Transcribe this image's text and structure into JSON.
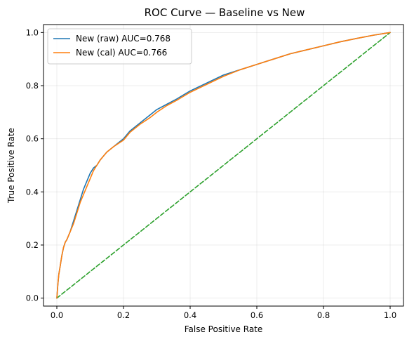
{
  "chart_data": {
    "type": "line",
    "title": "ROC Curve — Baseline vs New",
    "xlabel": "False Positive Rate",
    "ylabel": "True Positive Rate",
    "xlim": [
      -0.04,
      1.04
    ],
    "ylim": [
      -0.03,
      1.03
    ],
    "xticks": [
      0.0,
      0.2,
      0.4,
      0.6,
      0.8,
      1.0
    ],
    "xtick_labels": [
      "0.0",
      "0.2",
      "0.4",
      "0.6",
      "0.8",
      "1.0"
    ],
    "yticks": [
      0.0,
      0.2,
      0.4,
      0.6,
      0.8,
      1.0
    ],
    "ytick_labels": [
      "0.0",
      "0.2",
      "0.4",
      "0.6",
      "0.8",
      "1.0"
    ],
    "grid": true,
    "legend_position": "top-left",
    "series": [
      {
        "name": "New (raw) AUC=0.768",
        "color": "#1f77b4",
        "style": "solid",
        "x": [
          0.0,
          0.003,
          0.006,
          0.01,
          0.015,
          0.02,
          0.025,
          0.03,
          0.04,
          0.05,
          0.06,
          0.07,
          0.08,
          0.09,
          0.1,
          0.11,
          0.12,
          0.13,
          0.14,
          0.15,
          0.17,
          0.2,
          0.22,
          0.25,
          0.28,
          0.3,
          0.33,
          0.36,
          0.4,
          0.45,
          0.5,
          0.55,
          0.6,
          0.65,
          0.7,
          0.75,
          0.8,
          0.85,
          0.9,
          0.95,
          1.0
        ],
        "y": [
          0.0,
          0.05,
          0.09,
          0.12,
          0.16,
          0.19,
          0.21,
          0.22,
          0.25,
          0.29,
          0.33,
          0.37,
          0.41,
          0.44,
          0.47,
          0.49,
          0.5,
          0.52,
          0.535,
          0.55,
          0.57,
          0.6,
          0.63,
          0.66,
          0.69,
          0.71,
          0.73,
          0.75,
          0.78,
          0.81,
          0.84,
          0.86,
          0.88,
          0.9,
          0.92,
          0.935,
          0.95,
          0.965,
          0.978,
          0.99,
          1.0
        ]
      },
      {
        "name": "New (cal) AUC=0.766",
        "color": "#ff7f0e",
        "style": "solid",
        "x": [
          0.0,
          0.003,
          0.006,
          0.01,
          0.015,
          0.02,
          0.025,
          0.03,
          0.04,
          0.05,
          0.06,
          0.07,
          0.08,
          0.09,
          0.1,
          0.11,
          0.12,
          0.13,
          0.14,
          0.15,
          0.17,
          0.2,
          0.22,
          0.25,
          0.28,
          0.3,
          0.33,
          0.36,
          0.4,
          0.45,
          0.5,
          0.55,
          0.6,
          0.65,
          0.7,
          0.75,
          0.8,
          0.85,
          0.9,
          0.95,
          1.0
        ],
        "y": [
          0.0,
          0.05,
          0.09,
          0.12,
          0.16,
          0.19,
          0.21,
          0.22,
          0.25,
          0.28,
          0.32,
          0.36,
          0.39,
          0.42,
          0.45,
          0.48,
          0.5,
          0.52,
          0.535,
          0.55,
          0.57,
          0.595,
          0.625,
          0.655,
          0.68,
          0.7,
          0.725,
          0.745,
          0.775,
          0.805,
          0.835,
          0.86,
          0.88,
          0.9,
          0.92,
          0.935,
          0.95,
          0.965,
          0.978,
          0.99,
          1.0
        ]
      },
      {
        "name": "",
        "color": "#2ca02c",
        "style": "dashed",
        "x": [
          0.0,
          1.0
        ],
        "y": [
          0.0,
          1.0
        ]
      }
    ]
  }
}
